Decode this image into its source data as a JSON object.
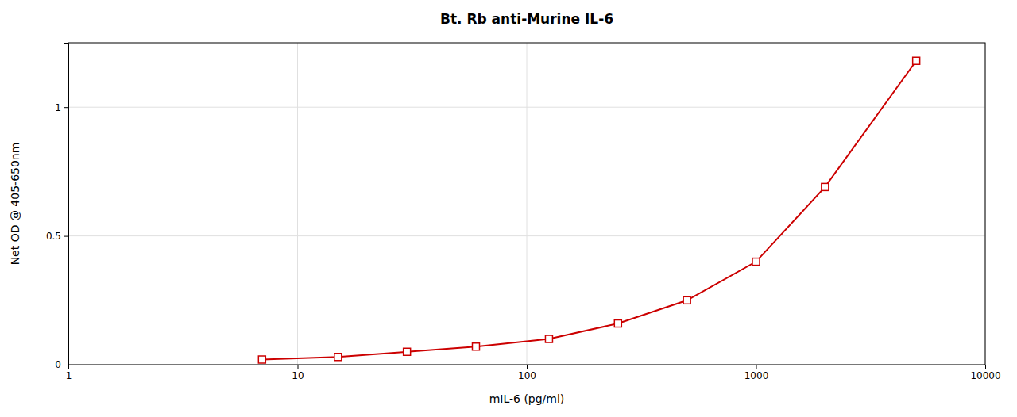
{
  "chart_data": {
    "type": "line",
    "title": "Bt. Rb anti-Murine IL-6",
    "xlabel": "mIL-6 (pg/ml)",
    "ylabel": "Net OD @ 405-650nm",
    "x": [
      7,
      15,
      30,
      60,
      125,
      250,
      500,
      1000,
      2000,
      5000
    ],
    "values": [
      0.02,
      0.03,
      0.05,
      0.07,
      0.1,
      0.16,
      0.25,
      0.4,
      0.69,
      1.18
    ],
    "color": "#cc0000",
    "marker": "square",
    "log": "x",
    "xlim": [
      1,
      10000
    ],
    "ylim": [
      0,
      1.25
    ],
    "xticks": [
      1,
      10,
      100,
      1000,
      10000
    ],
    "yticks": [
      0,
      0.5,
      1
    ],
    "grid": true
  }
}
